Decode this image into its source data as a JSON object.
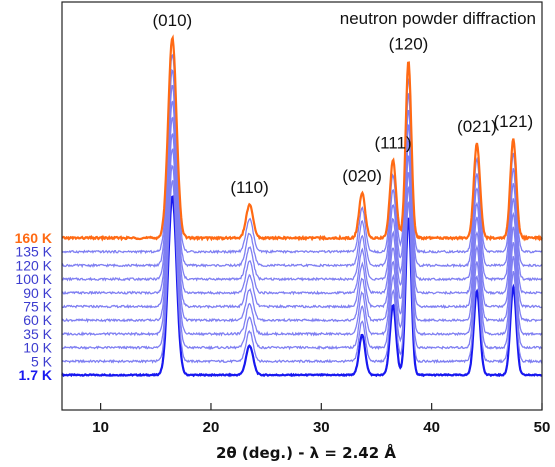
{
  "chart_data": {
    "type": "line",
    "title": "neutron powder diffraction",
    "xlabel": "2θ (deg.) - λ = 2.42 Å",
    "ylabel": "",
    "xlim": [
      6.5,
      50
    ],
    "xticks": [
      10,
      20,
      30,
      40,
      50
    ],
    "y_axis_ticks": false,
    "stacked_offset": true,
    "colors": {
      "top": "#ff6a14",
      "middle": "#7f7ff2",
      "bottom": "#1818f0"
    },
    "peaks": [
      {
        "label": "(010)",
        "x": 16.5,
        "base_height": 0.85,
        "width": 0.38
      },
      {
        "label": "(110)",
        "x": 23.5,
        "base_height": 0.14,
        "width": 0.32
      },
      {
        "label": "(020)",
        "x": 33.7,
        "base_height": 0.19,
        "width": 0.28
      },
      {
        "label": "(111)",
        "x": 36.5,
        "base_height": 0.33,
        "width": 0.28
      },
      {
        "label": "(120)",
        "x": 37.9,
        "base_height": 0.75,
        "width": 0.26
      },
      {
        "label": "(021)",
        "x": 44.1,
        "base_height": 0.4,
        "width": 0.28
      },
      {
        "label": "(121)",
        "x": 47.4,
        "base_height": 0.42,
        "width": 0.27
      }
    ],
    "series": [
      {
        "name": "1.7 K",
        "color": "#1818f0",
        "bold": true
      },
      {
        "name": "5 K",
        "color": "#7f7ff2",
        "bold": false
      },
      {
        "name": "10 K",
        "color": "#7f7ff2",
        "bold": false
      },
      {
        "name": "35 K",
        "color": "#7f7ff2",
        "bold": false
      },
      {
        "name": "60 K",
        "color": "#7f7ff2",
        "bold": false
      },
      {
        "name": "75 K",
        "color": "#7f7ff2",
        "bold": false
      },
      {
        "name": "90 K",
        "color": "#7f7ff2",
        "bold": false
      },
      {
        "name": "100 K",
        "color": "#7f7ff2",
        "bold": false
      },
      {
        "name": "120 K",
        "color": "#7f7ff2",
        "bold": false
      },
      {
        "name": "135 K",
        "color": "#7f7ff2",
        "bold": false
      },
      {
        "name": "160 K",
        "color": "#ff6a14",
        "bold": true
      }
    ]
  }
}
